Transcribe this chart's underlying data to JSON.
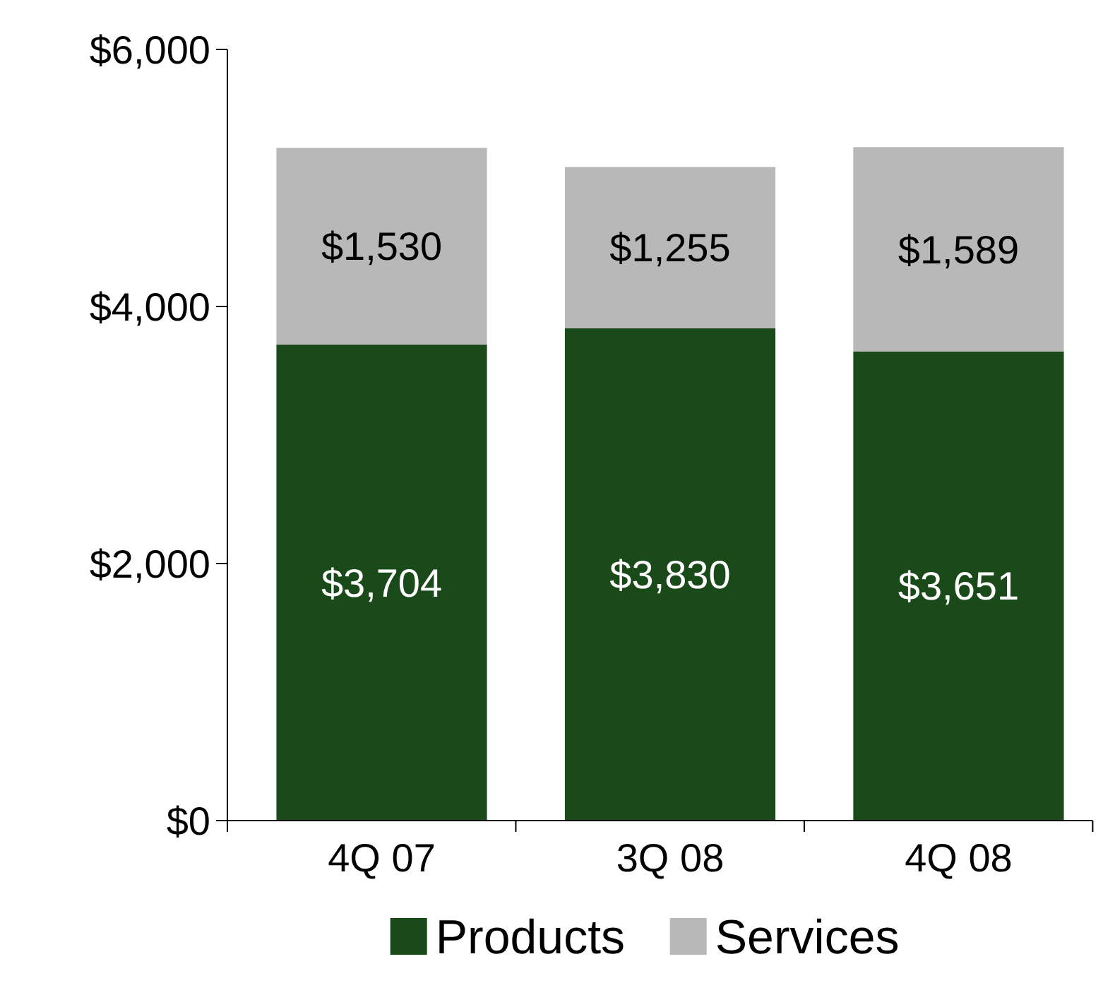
{
  "chart_data": {
    "type": "bar",
    "stacked": true,
    "categories": [
      "4Q 07",
      "3Q 08",
      "4Q 08"
    ],
    "series": [
      {
        "name": "Products",
        "color": "#1a4a1a",
        "values": [
          3704,
          3830,
          3651
        ],
        "value_labels": [
          "$3,704",
          "$3,830",
          "$3,651"
        ]
      },
      {
        "name": "Services",
        "color": "#b8b8b8",
        "values": [
          1530,
          1255,
          1589
        ],
        "value_labels": [
          "$1,530",
          "$1,255",
          "$1,589"
        ]
      }
    ],
    "ylim": [
      0,
      6000
    ],
    "yticks": [
      {
        "value": 0,
        "label": "$0"
      },
      {
        "value": 2000,
        "label": "$2,000"
      },
      {
        "value": 4000,
        "label": "$4,000"
      },
      {
        "value": 6000,
        "label": "$6,000"
      }
    ],
    "grid": false,
    "legend": "bottom"
  }
}
